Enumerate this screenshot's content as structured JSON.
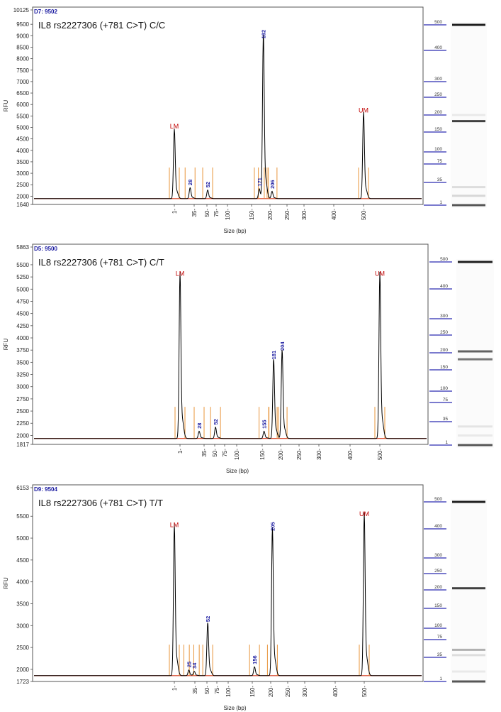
{
  "colors": {
    "trace": "#000000",
    "baseline": "#d23a1e",
    "marker_bar": "#e8943a",
    "size_label": "#1a1aa0",
    "marker_label": "#c00000",
    "ladder_line": "#2a2ab0",
    "gel_band": "#222222"
  },
  "y_axis_label": "RFU",
  "x_axis_label": "Size (bp)",
  "chart_data": [
    {
      "type": "line",
      "header": "D7: 9502",
      "title": "IL8 rs2227306  (+781 C>T) C/C",
      "ylim": [
        1640,
        10125
      ],
      "y_ticks": [
        "10125",
        "9500",
        "9000",
        "8500",
        "8000",
        "7500",
        "7000",
        "6500",
        "6000",
        "5500",
        "5000",
        "4500",
        "4000",
        "3500",
        "3000",
        "2500",
        "2000",
        "1640"
      ],
      "x_ticks": [
        "1",
        "35",
        "50",
        "75",
        "100",
        "150",
        "200",
        "250",
        "300",
        "400",
        "500"
      ],
      "peaks": [
        {
          "size": 1,
          "rfu": 4800,
          "label": "LM",
          "kind": "marker"
        },
        {
          "size": 28,
          "rfu": 2350,
          "label": "28",
          "kind": "size"
        },
        {
          "size": 52,
          "rfu": 2250,
          "label": "52",
          "kind": "size"
        },
        {
          "size": 171,
          "rfu": 2300,
          "label": "171",
          "kind": "size"
        },
        {
          "size": 182,
          "rfu": 8750,
          "label": "182",
          "kind": "size"
        },
        {
          "size": 206,
          "rfu": 2200,
          "label": "206",
          "kind": "size"
        },
        {
          "size": 500,
          "rfu": 5500,
          "label": "UM",
          "kind": "marker"
        }
      ],
      "gel_bands": [
        {
          "size": 500,
          "strength": 1.0
        },
        {
          "size": 200,
          "strength": 0.1
        },
        {
          "size": 182,
          "strength": 0.85
        },
        {
          "size": 28,
          "strength": 0.15
        },
        {
          "size": 15,
          "strength": 0.18
        },
        {
          "size": 1,
          "strength": 0.75
        }
      ]
    },
    {
      "type": "line",
      "header": "D5: 9500",
      "title": "IL8 rs2227306  (+781 C>T) C/T",
      "ylim": [
        1817,
        5863
      ],
      "y_ticks": [
        "5863",
        "5500",
        "5250",
        "5000",
        "4750",
        "4500",
        "4250",
        "4000",
        "3750",
        "3500",
        "3250",
        "3000",
        "2750",
        "2500",
        "2250",
        "2000",
        "1817"
      ],
      "x_ticks": [
        "1",
        "35",
        "50",
        "75",
        "100",
        "150",
        "200",
        "250",
        "300",
        "400",
        "500"
      ],
      "peaks": [
        {
          "size": 1,
          "rfu": 5200,
          "label": "LM",
          "kind": "marker"
        },
        {
          "size": 28,
          "rfu": 2080,
          "label": "28",
          "kind": "size"
        },
        {
          "size": 52,
          "rfu": 2160,
          "label": "52",
          "kind": "size"
        },
        {
          "size": 155,
          "rfu": 2080,
          "label": "155",
          "kind": "size"
        },
        {
          "size": 181,
          "rfu": 3500,
          "label": "181",
          "kind": "size"
        },
        {
          "size": 204,
          "rfu": 3680,
          "label": "204",
          "kind": "size"
        },
        {
          "size": 500,
          "rfu": 5200,
          "label": "UM",
          "kind": "marker"
        }
      ],
      "gel_bands": [
        {
          "size": 500,
          "strength": 1.0
        },
        {
          "size": 204,
          "strength": 0.7
        },
        {
          "size": 181,
          "strength": 0.6
        },
        {
          "size": 28,
          "strength": 0.12
        },
        {
          "size": 15,
          "strength": 0.1
        },
        {
          "size": 1,
          "strength": 0.75
        }
      ]
    },
    {
      "type": "line",
      "header": "D9: 9504",
      "title": "IL8 rs2227306  (+781 C>T) T/T",
      "ylim": [
        1723,
        6153
      ],
      "y_ticks": [
        "6153",
        "5500",
        "5000",
        "4500",
        "4000",
        "3500",
        "3000",
        "2500",
        "2000",
        "1723"
      ],
      "x_ticks": [
        "1",
        "35",
        "50",
        "75",
        "100",
        "150",
        "200",
        "250",
        "300",
        "400",
        "500"
      ],
      "peaks": [
        {
          "size": 1,
          "rfu": 5170,
          "label": "LM",
          "kind": "marker"
        },
        {
          "size": 25,
          "rfu": 1980,
          "label": "25",
          "kind": "size"
        },
        {
          "size": 34,
          "rfu": 1950,
          "label": "34",
          "kind": "size"
        },
        {
          "size": 52,
          "rfu": 3020,
          "label": "52",
          "kind": "size"
        },
        {
          "size": 156,
          "rfu": 2050,
          "label": "156",
          "kind": "size"
        },
        {
          "size": 205,
          "rfu": 5100,
          "label": "205",
          "kind": "size"
        },
        {
          "size": 500,
          "rfu": 5420,
          "label": "UM",
          "kind": "marker"
        }
      ],
      "gel_bands": [
        {
          "size": 500,
          "strength": 1.0
        },
        {
          "size": 205,
          "strength": 0.85
        },
        {
          "size": 52,
          "strength": 0.35
        },
        {
          "size": 40,
          "strength": 0.15
        },
        {
          "size": 15,
          "strength": 0.1
        },
        {
          "size": 1,
          "strength": 0.75
        }
      ]
    }
  ],
  "ladder": {
    "sizes": [
      "500",
      "400",
      "300",
      "250",
      "200",
      "150",
      "100",
      "75",
      "35",
      "1"
    ]
  }
}
